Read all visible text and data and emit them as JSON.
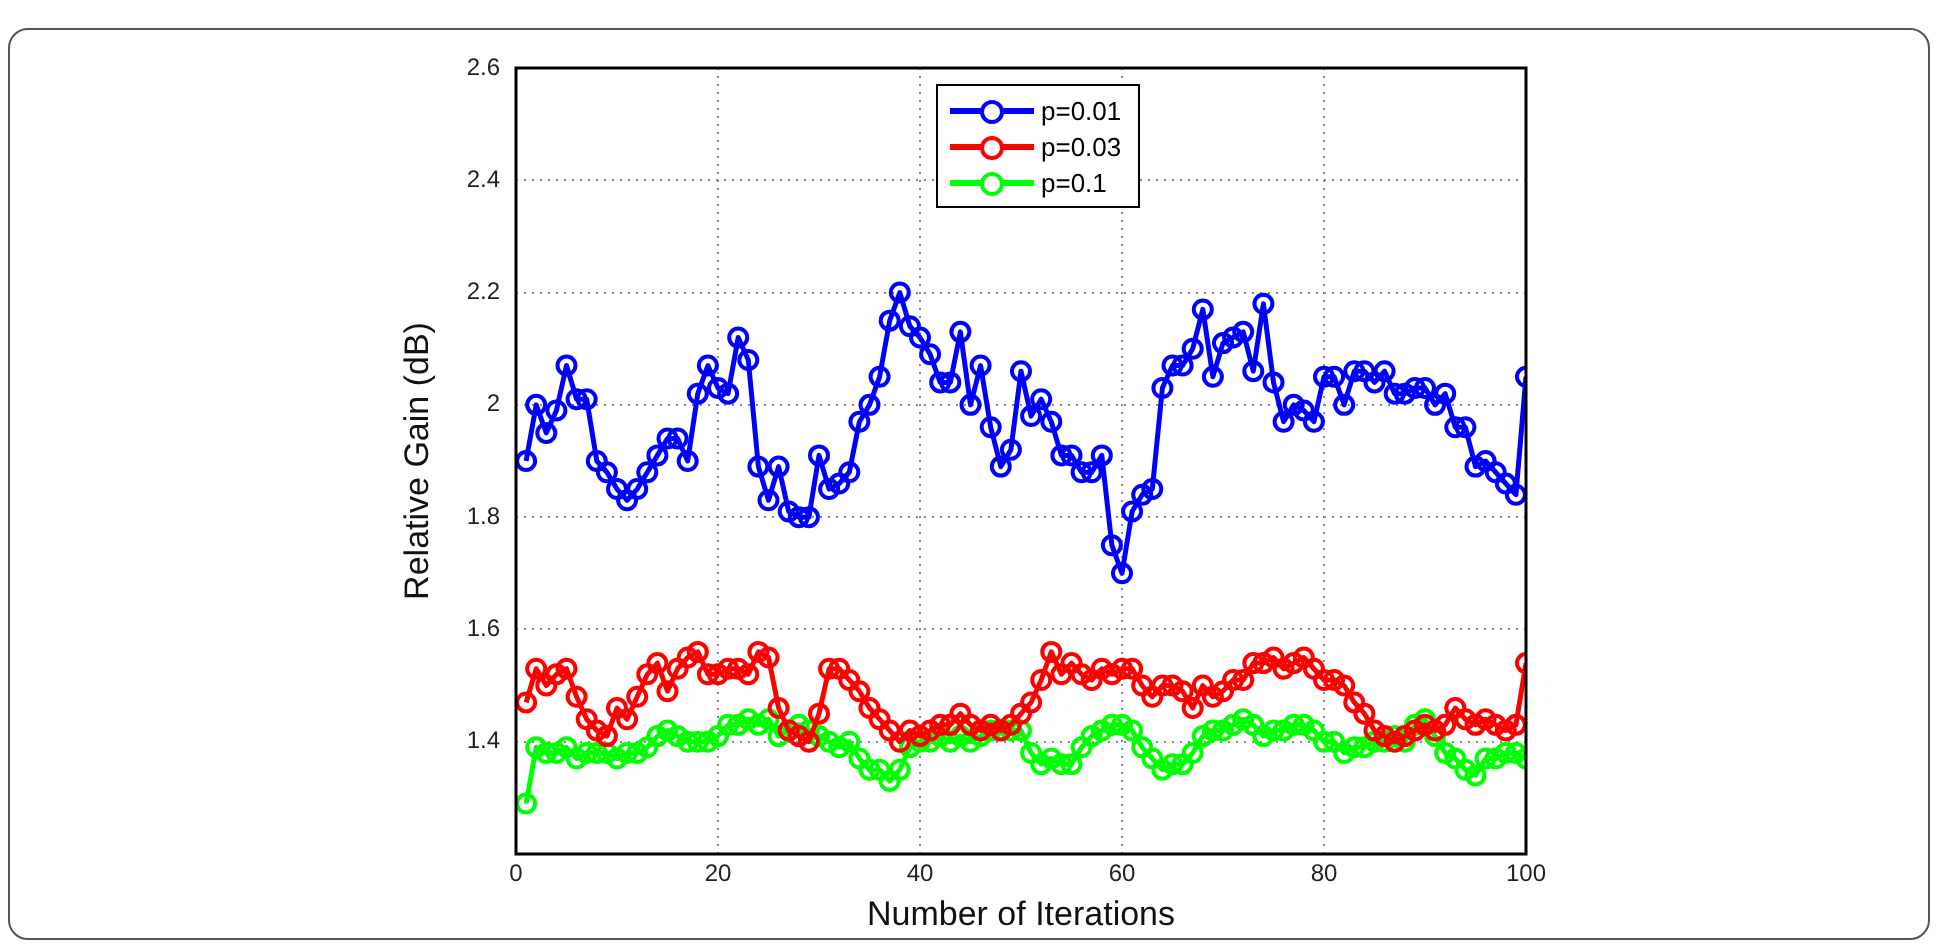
{
  "chart_data": {
    "type": "line",
    "xlabel": "Number of Iterations",
    "ylabel": "Relative Gain (dB)",
    "x": [
      1,
      2,
      3,
      4,
      5,
      6,
      7,
      8,
      9,
      10,
      11,
      12,
      13,
      14,
      15,
      16,
      17,
      18,
      19,
      20,
      21,
      22,
      23,
      24,
      25,
      26,
      27,
      28,
      29,
      30,
      31,
      32,
      33,
      34,
      35,
      36,
      37,
      38,
      39,
      40,
      41,
      42,
      43,
      44,
      45,
      46,
      47,
      48,
      49,
      50,
      51,
      52,
      53,
      54,
      55,
      56,
      57,
      58,
      59,
      60,
      61,
      62,
      63,
      64,
      65,
      66,
      67,
      68,
      69,
      70,
      71,
      72,
      73,
      74,
      75,
      76,
      77,
      78,
      79,
      80,
      81,
      82,
      83,
      84,
      85,
      86,
      87,
      88,
      89,
      90,
      91,
      92,
      93,
      94,
      95,
      96,
      97,
      98,
      99,
      100
    ],
    "series": [
      {
        "name": "p=0.01",
        "color": "#0000ff",
        "values": [
          1.9,
          2.0,
          1.95,
          1.99,
          2.07,
          2.01,
          2.01,
          1.9,
          1.88,
          1.85,
          1.83,
          1.85,
          1.88,
          1.91,
          1.94,
          1.94,
          1.9,
          2.02,
          2.07,
          2.03,
          2.02,
          2.12,
          2.08,
          1.89,
          1.83,
          1.89,
          1.81,
          1.8,
          1.8,
          1.91,
          1.85,
          1.86,
          1.88,
          1.97,
          2.0,
          2.05,
          2.15,
          2.2,
          2.14,
          2.12,
          2.09,
          2.04,
          2.04,
          2.13,
          2.0,
          2.07,
          1.96,
          1.89,
          1.92,
          2.06,
          1.98,
          2.01,
          1.97,
          1.91,
          1.91,
          1.88,
          1.88,
          1.91,
          1.75,
          1.7,
          1.81,
          1.84,
          1.85,
          2.03,
          2.07,
          2.07,
          2.1,
          2.17,
          2.05,
          2.11,
          2.12,
          2.13,
          2.06,
          2.18,
          2.04,
          1.97,
          2.0,
          1.99,
          1.97,
          2.05,
          2.05,
          2.0,
          2.06,
          2.06,
          2.04,
          2.06,
          2.02,
          2.02,
          2.03,
          2.03,
          2.0,
          2.02,
          1.96,
          1.96,
          1.89,
          1.9,
          1.88,
          1.86,
          1.84,
          2.05
        ]
      },
      {
        "name": "p=0.03",
        "color": "#ff0000",
        "values": [
          1.47,
          1.53,
          1.5,
          1.52,
          1.53,
          1.48,
          1.44,
          1.42,
          1.41,
          1.46,
          1.44,
          1.48,
          1.52,
          1.54,
          1.49,
          1.53,
          1.55,
          1.56,
          1.52,
          1.52,
          1.53,
          1.53,
          1.52,
          1.56,
          1.55,
          1.46,
          1.42,
          1.41,
          1.4,
          1.45,
          1.53,
          1.53,
          1.51,
          1.49,
          1.46,
          1.44,
          1.42,
          1.4,
          1.42,
          1.41,
          1.42,
          1.43,
          1.43,
          1.45,
          1.43,
          1.42,
          1.43,
          1.42,
          1.43,
          1.45,
          1.47,
          1.51,
          1.56,
          1.52,
          1.54,
          1.52,
          1.51,
          1.53,
          1.52,
          1.53,
          1.53,
          1.5,
          1.48,
          1.5,
          1.5,
          1.49,
          1.46,
          1.5,
          1.48,
          1.49,
          1.51,
          1.51,
          1.54,
          1.54,
          1.55,
          1.53,
          1.54,
          1.55,
          1.53,
          1.51,
          1.51,
          1.5,
          1.47,
          1.45,
          1.42,
          1.41,
          1.4,
          1.41,
          1.42,
          1.43,
          1.42,
          1.43,
          1.46,
          1.44,
          1.43,
          1.44,
          1.43,
          1.42,
          1.43,
          1.54
        ]
      },
      {
        "name": "p=0.1",
        "color": "#00ff00",
        "values": [
          1.29,
          1.39,
          1.38,
          1.38,
          1.39,
          1.37,
          1.38,
          1.38,
          1.38,
          1.37,
          1.38,
          1.38,
          1.39,
          1.41,
          1.42,
          1.41,
          1.4,
          1.4,
          1.4,
          1.41,
          1.43,
          1.43,
          1.44,
          1.43,
          1.44,
          1.41,
          1.42,
          1.43,
          1.42,
          1.41,
          1.4,
          1.39,
          1.4,
          1.37,
          1.35,
          1.35,
          1.33,
          1.35,
          1.39,
          1.4,
          1.4,
          1.41,
          1.4,
          1.41,
          1.4,
          1.41,
          1.42,
          1.42,
          1.42,
          1.42,
          1.38,
          1.36,
          1.37,
          1.36,
          1.36,
          1.39,
          1.41,
          1.42,
          1.43,
          1.43,
          1.42,
          1.39,
          1.37,
          1.35,
          1.36,
          1.36,
          1.38,
          1.41,
          1.42,
          1.42,
          1.43,
          1.44,
          1.43,
          1.41,
          1.42,
          1.42,
          1.43,
          1.43,
          1.42,
          1.4,
          1.4,
          1.38,
          1.39,
          1.39,
          1.4,
          1.4,
          1.41,
          1.4,
          1.43,
          1.44,
          1.41,
          1.38,
          1.37,
          1.35,
          1.34,
          1.37,
          1.37,
          1.38,
          1.38,
          1.37
        ]
      }
    ],
    "xlim": [
      0,
      100
    ],
    "xticks": [
      0,
      20,
      40,
      60,
      80,
      100
    ],
    "ylim": [
      1.2,
      2.6
    ],
    "yticks": [
      1.4,
      1.6,
      1.8,
      2,
      2.2,
      2.4,
      2.6
    ],
    "grid": true,
    "legend": "top",
    "marker": "circle",
    "line_style": "solid"
  }
}
